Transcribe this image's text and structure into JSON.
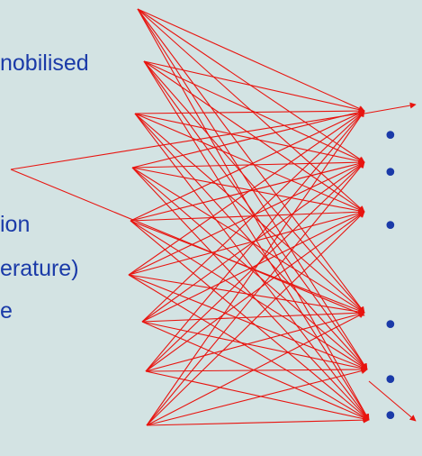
{
  "labels": [
    "nobilised",
    "ion",
    "erature)",
    "e"
  ],
  "bullet_glyph": "•",
  "line_color": "#e8140f",
  "text_color": "#1a3aa8",
  "background_color": "#d3e3e3"
}
